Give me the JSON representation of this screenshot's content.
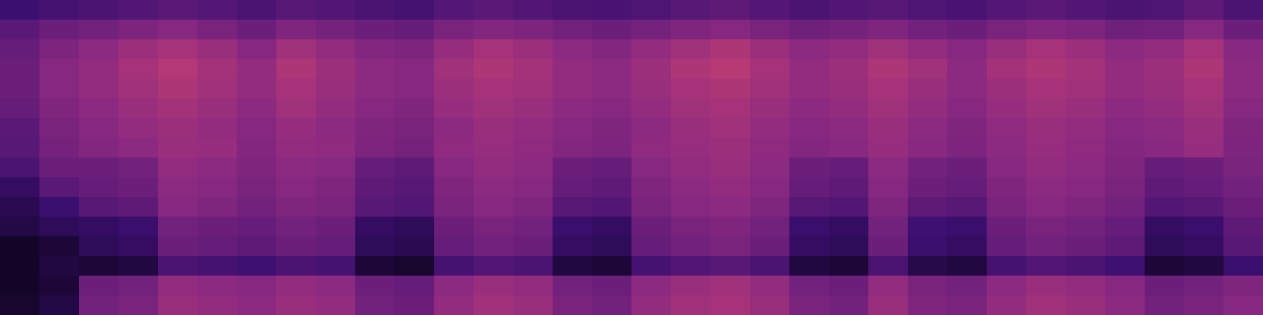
{
  "chart_data": {
    "type": "heatmap",
    "tick_labels": false,
    "zlim": [
      0,
      100
    ],
    "cells": [
      [
        25,
        28,
        30,
        32,
        35,
        33,
        30,
        34,
        32,
        30,
        28,
        33,
        35,
        32,
        30,
        29,
        31,
        34,
        36,
        33,
        30,
        32,
        34,
        31,
        29,
        33,
        35,
        32,
        30,
        31,
        36,
        30
      ],
      [
        35,
        40,
        42,
        45,
        48,
        44,
        40,
        46,
        43,
        40,
        38,
        44,
        47,
        45,
        42,
        40,
        43,
        46,
        48,
        44,
        41,
        43,
        46,
        42,
        40,
        44,
        47,
        45,
        41,
        42,
        48,
        40
      ],
      [
        38,
        45,
        50,
        55,
        58,
        54,
        48,
        56,
        52,
        47,
        45,
        53,
        58,
        55,
        50,
        47,
        52,
        56,
        60,
        55,
        50,
        52,
        56,
        52,
        48,
        54,
        58,
        55,
        50,
        52,
        58,
        48
      ],
      [
        40,
        48,
        52,
        58,
        62,
        57,
        52,
        60,
        55,
        50,
        48,
        56,
        60,
        57,
        52,
        50,
        55,
        60,
        63,
        58,
        52,
        55,
        60,
        56,
        50,
        57,
        60,
        57,
        52,
        55,
        60,
        50
      ],
      [
        40,
        48,
        52,
        56,
        60,
        56,
        52,
        58,
        54,
        50,
        48,
        55,
        58,
        56,
        52,
        50,
        54,
        58,
        60,
        56,
        52,
        54,
        58,
        54,
        50,
        55,
        58,
        56,
        52,
        54,
        58,
        50
      ],
      [
        38,
        46,
        50,
        54,
        57,
        54,
        50,
        56,
        52,
        48,
        46,
        53,
        56,
        54,
        50,
        48,
        52,
        56,
        58,
        54,
        50,
        52,
        56,
        52,
        48,
        53,
        56,
        54,
        50,
        52,
        56,
        48
      ],
      [
        35,
        44,
        48,
        52,
        55,
        52,
        48,
        53,
        50,
        46,
        44,
        50,
        54,
        52,
        48,
        46,
        50,
        54,
        56,
        52,
        48,
        50,
        54,
        50,
        46,
        51,
        54,
        52,
        48,
        50,
        54,
        46
      ],
      [
        34,
        43,
        47,
        50,
        54,
        53,
        47,
        52,
        51,
        45,
        43,
        51,
        53,
        51,
        47,
        45,
        51,
        53,
        55,
        51,
        47,
        49,
        53,
        49,
        45,
        50,
        53,
        51,
        47,
        49,
        53,
        45
      ],
      [
        30,
        40,
        40,
        42,
        52,
        50,
        46,
        50,
        48,
        38,
        36,
        48,
        52,
        50,
        40,
        38,
        48,
        52,
        54,
        50,
        40,
        38,
        50,
        42,
        40,
        48,
        52,
        50,
        46,
        38,
        40,
        44
      ],
      [
        22,
        35,
        38,
        40,
        50,
        48,
        44,
        48,
        46,
        36,
        34,
        46,
        50,
        48,
        38,
        36,
        46,
        50,
        52,
        48,
        38,
        36,
        48,
        40,
        38,
        46,
        50,
        48,
        44,
        36,
        38,
        42
      ],
      [
        18,
        25,
        34,
        36,
        48,
        46,
        42,
        46,
        44,
        34,
        32,
        44,
        48,
        46,
        34,
        32,
        44,
        48,
        50,
        46,
        34,
        32,
        46,
        36,
        34,
        44,
        48,
        46,
        42,
        32,
        34,
        40
      ],
      [
        15,
        20,
        22,
        24,
        42,
        40,
        38,
        42,
        40,
        22,
        20,
        40,
        44,
        42,
        24,
        22,
        40,
        44,
        46,
        42,
        24,
        22,
        42,
        26,
        24,
        40,
        44,
        42,
        38,
        22,
        24,
        36
      ],
      [
        8,
        12,
        20,
        22,
        40,
        38,
        36,
        40,
        38,
        20,
        18,
        38,
        42,
        40,
        22,
        20,
        38,
        42,
        44,
        40,
        22,
        20,
        40,
        24,
        22,
        38,
        42,
        40,
        36,
        20,
        22,
        34
      ],
      [
        8,
        14,
        12,
        14,
        30,
        28,
        26,
        30,
        28,
        12,
        10,
        28,
        32,
        30,
        14,
        12,
        28,
        32,
        34,
        30,
        14,
        12,
        30,
        16,
        14,
        28,
        32,
        30,
        26,
        12,
        14,
        24
      ],
      [
        8,
        12,
        40,
        42,
        52,
        50,
        48,
        52,
        50,
        40,
        38,
        50,
        54,
        52,
        42,
        40,
        50,
        54,
        56,
        52,
        42,
        40,
        52,
        44,
        42,
        50,
        54,
        52,
        48,
        40,
        42,
        46
      ],
      [
        10,
        15,
        42,
        44,
        54,
        52,
        50,
        54,
        52,
        42,
        40,
        52,
        56,
        54,
        44,
        42,
        52,
        56,
        58,
        54,
        44,
        42,
        54,
        46,
        44,
        52,
        56,
        54,
        50,
        42,
        44,
        48
      ]
    ]
  }
}
